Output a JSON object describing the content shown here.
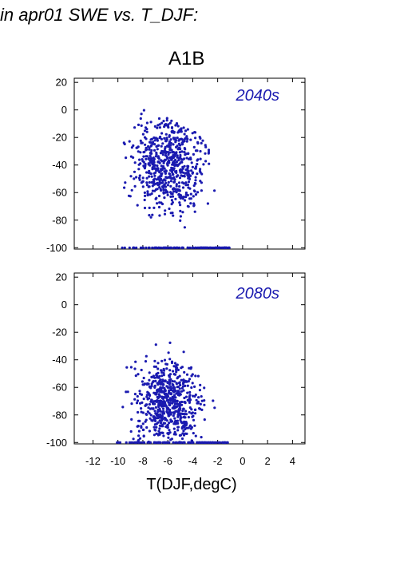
{
  "heading": "in apr01 SWE vs. T_DJF:",
  "scenario": "A1B",
  "colors": {
    "points": "#1a1ab0",
    "axis": "#000000"
  },
  "chart_data": [
    {
      "type": "scatter",
      "period_label": "2040s",
      "xlim": [
        -13.5,
        5
      ],
      "ylim": [
        -101,
        23
      ],
      "x_ticks": [
        -12,
        -10,
        -8,
        -6,
        -4,
        -2,
        0,
        2,
        4
      ],
      "y_ticks": [
        20,
        0,
        -20,
        -40,
        -60,
        -80,
        -100
      ],
      "point_cloud": {
        "dense_region": {
          "x_range": [
            -10,
            -1.5
          ],
          "y_range": [
            -100,
            3
          ],
          "center": [
            -6,
            -40
          ]
        },
        "floor_value": -100,
        "floor_x_range": [
          -10,
          -1
        ]
      }
    },
    {
      "type": "scatter",
      "period_label": "2080s",
      "xlim": [
        -13.5,
        5
      ],
      "ylim": [
        -101,
        23
      ],
      "x_ticks": [
        -12,
        -10,
        -8,
        -6,
        -4,
        -2,
        0,
        2,
        4
      ],
      "x_tick_labels": [
        "-12",
        "-10",
        "-8",
        "-6",
        "-4",
        "-2",
        "0",
        "2",
        "4"
      ],
      "y_ticks": [
        20,
        0,
        -20,
        -40,
        -60,
        -80,
        -100
      ],
      "xlabel": "T(DJF,degC)",
      "point_cloud": {
        "dense_region": {
          "x_range": [
            -12.5,
            -1.5
          ],
          "y_range": [
            -100,
            -10
          ],
          "center": [
            -6,
            -70
          ]
        },
        "floor_value": -100,
        "floor_x_range": [
          -11,
          -1
        ]
      }
    }
  ]
}
